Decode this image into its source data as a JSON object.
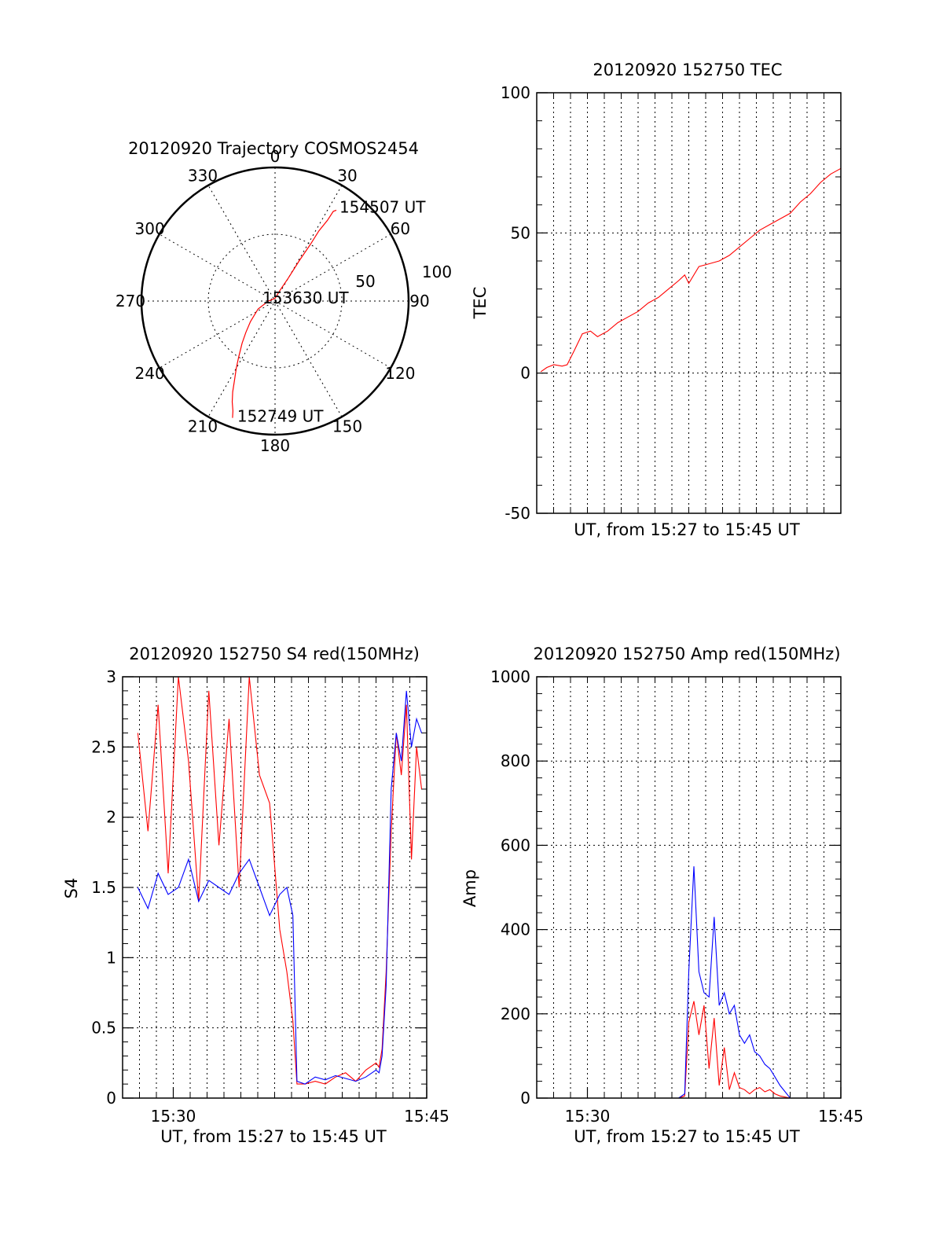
{
  "colors": {
    "red": "#ff0000",
    "blue": "#0000ff",
    "axis": "#000000"
  },
  "chart_data": [
    {
      "type": "polar",
      "title": "20120920 Trajectory COSMOS2454",
      "angle_labels": [
        "0",
        "30",
        "60",
        "90",
        "120",
        "150",
        "180",
        "210",
        "240",
        "270",
        "300",
        "330"
      ],
      "radius_labels": [
        "50",
        "100"
      ],
      "rmax": 100,
      "series": [
        {
          "color": "red",
          "points": [
            [
              200,
              93
            ],
            [
              201,
              88
            ],
            [
              203,
              82
            ],
            [
              205,
              75
            ],
            [
              207,
              67
            ],
            [
              210,
              58
            ],
            [
              213,
              50
            ],
            [
              218,
              40
            ],
            [
              223,
              32
            ],
            [
              230,
              24
            ],
            [
              245,
              14
            ],
            [
              270,
              5
            ],
            [
              0,
              2
            ],
            [
              25,
              9
            ],
            [
              30,
              20
            ],
            [
              31,
              35
            ],
            [
              32,
              50
            ],
            [
              32,
              62
            ],
            [
              33,
              72
            ],
            [
              33,
              80
            ],
            [
              34,
              82
            ]
          ]
        }
      ],
      "annotations": [
        {
          "text": "154507 UT",
          "angle": 34,
          "r": 82
        },
        {
          "text": "153630 UT",
          "angle": 0,
          "r": 0
        },
        {
          "text": "152749 UT",
          "angle": 200,
          "r": 93
        }
      ]
    },
    {
      "type": "line",
      "title": "20120920 152750 TEC",
      "xlabel": "UT, from 15:27 to 15:45 UT",
      "ylabel": "TEC",
      "ylim": [
        -50,
        100
      ],
      "yticks": [
        "-50",
        "0",
        "50",
        "100"
      ],
      "xlim": [
        15.45,
        15.75
      ],
      "series": [
        {
          "color": "red",
          "x": [
            15.454,
            15.46,
            15.467,
            15.475,
            15.48,
            15.487,
            15.495,
            15.503,
            15.51,
            15.52,
            15.53,
            15.54,
            15.55,
            15.56,
            15.57,
            15.58,
            15.59,
            15.596,
            15.6,
            15.61,
            15.62,
            15.63,
            15.64,
            15.65,
            15.66,
            15.67,
            15.68,
            15.69,
            15.7,
            15.71,
            15.72,
            15.73,
            15.74,
            15.75
          ],
          "y": [
            0.5,
            2,
            3,
            2.5,
            3,
            8,
            14,
            15,
            13,
            15,
            18,
            20,
            22,
            25,
            27,
            30,
            33,
            35,
            32,
            38,
            39,
            40,
            42,
            45,
            48,
            51,
            53,
            55,
            57,
            61,
            64,
            68,
            71,
            73
          ]
        }
      ]
    },
    {
      "type": "line",
      "title": "20120920 152750 S4 red(150MHz)",
      "xlabel": "UT, from 15:27 to 15:45 UT",
      "ylabel": "S4",
      "ylim": [
        0,
        3
      ],
      "yticks": [
        "0",
        "0.5",
        "1",
        "1.5",
        "2",
        "2.5",
        "3"
      ],
      "xlim": [
        15.45,
        15.75
      ],
      "xticks": [
        {
          "value": 15.5,
          "label": "15:30"
        },
        {
          "value": 15.75,
          "label": "15:45"
        }
      ],
      "series": [
        {
          "color": "red",
          "x": [
            15.465,
            15.475,
            15.485,
            15.495,
            15.505,
            15.515,
            15.525,
            15.535,
            15.545,
            15.555,
            15.565,
            15.575,
            15.585,
            15.595,
            15.605,
            15.612,
            15.618,
            15.622,
            15.63,
            15.64,
            15.65,
            15.66,
            15.67,
            15.68,
            15.69,
            15.7,
            15.703,
            15.706,
            15.71,
            15.715,
            15.72,
            15.725,
            15.73,
            15.735,
            15.74,
            15.745
          ],
          "y": [
            2.6,
            1.9,
            2.8,
            1.6,
            3.0,
            2.4,
            1.4,
            2.9,
            1.8,
            2.7,
            1.5,
            3.0,
            2.3,
            2.1,
            1.2,
            0.9,
            0.55,
            0.1,
            0.1,
            0.12,
            0.1,
            0.15,
            0.18,
            0.12,
            0.2,
            0.25,
            0.22,
            0.35,
            0.9,
            1.9,
            2.6,
            2.3,
            2.8,
            1.7,
            2.5,
            2.2
          ]
        },
        {
          "color": "blue",
          "x": [
            15.465,
            15.475,
            15.485,
            15.495,
            15.505,
            15.515,
            15.525,
            15.535,
            15.545,
            15.555,
            15.565,
            15.575,
            15.585,
            15.595,
            15.605,
            15.612,
            15.618,
            15.622,
            15.63,
            15.64,
            15.65,
            15.66,
            15.67,
            15.68,
            15.69,
            15.7,
            15.703,
            15.706,
            15.71,
            15.715,
            15.72,
            15.725,
            15.73,
            15.735,
            15.74,
            15.745
          ],
          "y": [
            1.5,
            1.35,
            1.6,
            1.45,
            1.5,
            1.7,
            1.4,
            1.55,
            1.5,
            1.45,
            1.6,
            1.7,
            1.5,
            1.3,
            1.45,
            1.5,
            1.3,
            0.12,
            0.1,
            0.15,
            0.13,
            0.16,
            0.14,
            0.12,
            0.15,
            0.2,
            0.18,
            0.3,
            0.8,
            2.2,
            2.6,
            2.4,
            2.9,
            2.5,
            2.7,
            2.6
          ]
        }
      ]
    },
    {
      "type": "line",
      "title": "20120920 152750 Amp red(150MHz)",
      "xlabel": "UT, from 15:27 to 15:45 UT",
      "ylabel": "Amp",
      "ylim": [
        0,
        1000
      ],
      "yticks": [
        "0",
        "200",
        "400",
        "600",
        "800",
        "1000"
      ],
      "xlim": [
        15.45,
        15.75
      ],
      "xticks": [
        {
          "value": 15.5,
          "label": "15:30"
        },
        {
          "value": 15.75,
          "label": "15:45"
        }
      ],
      "series": [
        {
          "color": "red",
          "x": [
            15.455,
            15.5,
            15.55,
            15.59,
            15.596,
            15.6,
            15.605,
            15.61,
            15.615,
            15.62,
            15.625,
            15.63,
            15.635,
            15.64,
            15.645,
            15.65,
            15.655,
            15.66,
            15.665,
            15.67,
            15.675,
            15.68,
            15.685,
            15.69,
            15.7,
            15.75
          ],
          "y": [
            0,
            0,
            0,
            0,
            5,
            180,
            230,
            150,
            220,
            70,
            190,
            30,
            120,
            20,
            60,
            25,
            20,
            10,
            20,
            25,
            15,
            20,
            10,
            5,
            0,
            0
          ]
        },
        {
          "color": "blue",
          "x": [
            15.455,
            15.5,
            15.55,
            15.59,
            15.596,
            15.6,
            15.605,
            15.61,
            15.615,
            15.62,
            15.625,
            15.63,
            15.635,
            15.64,
            15.645,
            15.65,
            15.655,
            15.66,
            15.665,
            15.67,
            15.675,
            15.68,
            15.685,
            15.69,
            15.7,
            15.75
          ],
          "y": [
            0,
            0,
            0,
            0,
            10,
            300,
            550,
            300,
            250,
            240,
            430,
            220,
            250,
            200,
            220,
            150,
            130,
            150,
            110,
            100,
            80,
            70,
            50,
            30,
            0,
            0
          ]
        }
      ]
    }
  ]
}
